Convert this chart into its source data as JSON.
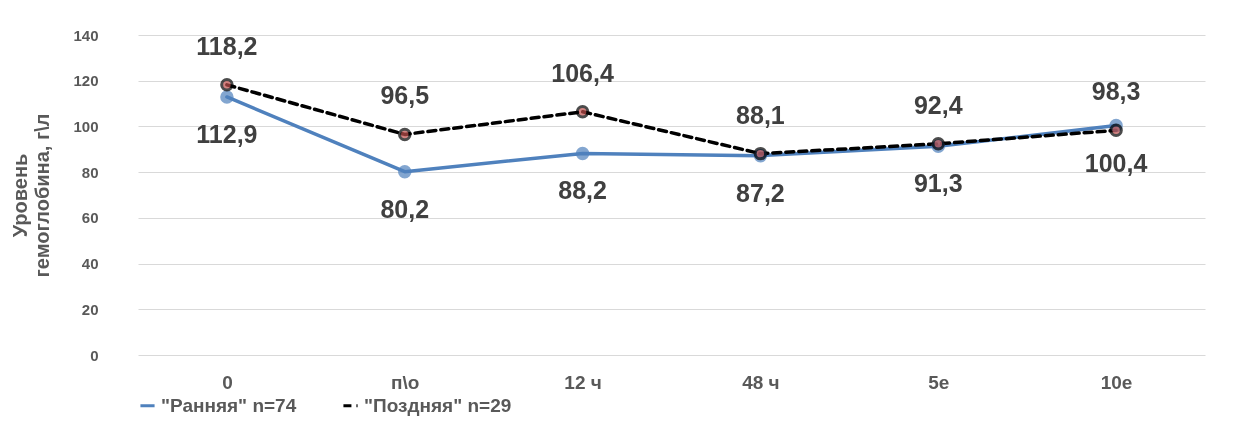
{
  "chart_data": {
    "type": "line",
    "ylabel": "Уровень гемоглобина, г\\л",
    "categories": [
      "0",
      "п\\о",
      "12 ч",
      "48 ч",
      "5е",
      "10е"
    ],
    "series": [
      {
        "name": "\"Ранняя\" n=74",
        "color": "#4f81bd",
        "line_style": "solid",
        "marker": "circle",
        "values": [
          112.9,
          80.2,
          88.2,
          87.2,
          91.3,
          100.4
        ],
        "value_labels": [
          "112,9",
          "80,2",
          "88,2",
          "87,2",
          "91,3",
          "100,4"
        ]
      },
      {
        "name": "\"Поздняя\" n=29",
        "color": "#000000",
        "line_style": "dashed",
        "marker": "circle",
        "values": [
          118.2,
          96.5,
          106.4,
          88.1,
          92.4,
          98.3
        ],
        "value_labels": [
          "118,2",
          "96,5",
          "106,4",
          "88,1",
          "92,4",
          "98,3"
        ]
      }
    ],
    "ylim": [
      0,
      140
    ],
    "yticks": [
      0,
      20,
      40,
      60,
      80,
      100,
      120,
      140
    ],
    "grid": "y",
    "legend": "bottom"
  }
}
